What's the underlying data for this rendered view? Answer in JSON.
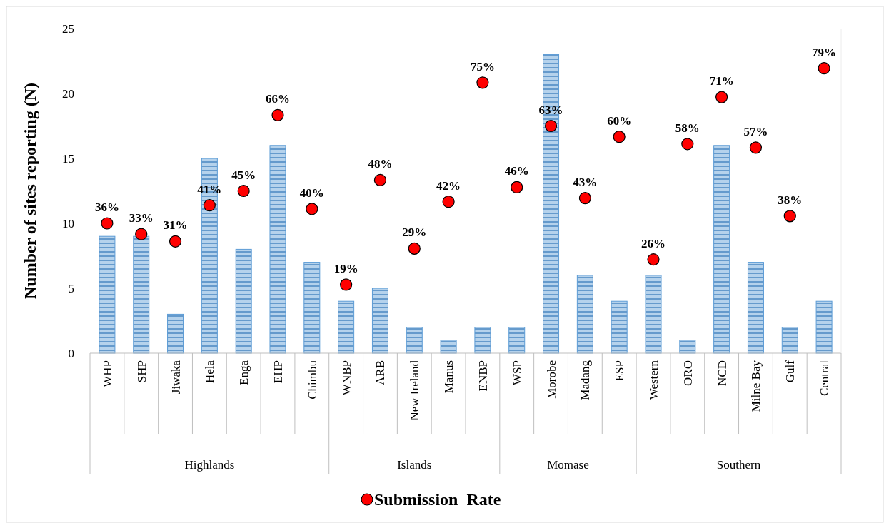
{
  "chart_data": {
    "type": "bar",
    "ylabel": "Number of sites reporting (N)",
    "categories": [
      "WHP",
      "SHP",
      "Jiwaka",
      "Hela",
      "Enga",
      "EHP",
      "Chimbu",
      "WNBP",
      "ARB",
      "New Ireland",
      "Manus",
      "ENBP",
      "WSP",
      "Morobe",
      "Madang",
      "ESP",
      "Western",
      "ORO",
      "NCD",
      "Milne Bay",
      "Gulf",
      "Central"
    ],
    "series": [
      {
        "color": "#5b9bd5",
        "values": [
          9,
          9,
          3,
          15,
          8,
          16,
          7,
          4,
          5,
          2,
          1,
          2,
          2,
          23,
          6,
          4,
          6,
          1,
          16,
          7,
          2,
          4
        ]
      },
      {
        "type": "scatter",
        "name": "Submission  Rate",
        "color": "#ff0000",
        "axis": "y2",
        "marker": "circle",
        "values": [
          36,
          33,
          31,
          41,
          45,
          66,
          40,
          19,
          48,
          29,
          42,
          75,
          46,
          63,
          43,
          60,
          26,
          58,
          71,
          57,
          38,
          79
        ],
        "value_labels": [
          "36%",
          "33%",
          "31%",
          "41%",
          "45%",
          "66%",
          "40%",
          "19%",
          "48%",
          "29%",
          "42%",
          "75%",
          "46%",
          "63%",
          "43%",
          "60%",
          "26%",
          "58%",
          "71%",
          "57%",
          "38%",
          "79%"
        ]
      }
    ],
    "ylim": [
      0,
      25
    ],
    "yticks": [
      0,
      5,
      10,
      15,
      20,
      25
    ],
    "y2lim": [
      0,
      90
    ],
    "annotations": [
      "Highlands",
      "Islands",
      "Momase",
      "Southern"
    ],
    "legend": "bottom",
    "grid": false
  }
}
